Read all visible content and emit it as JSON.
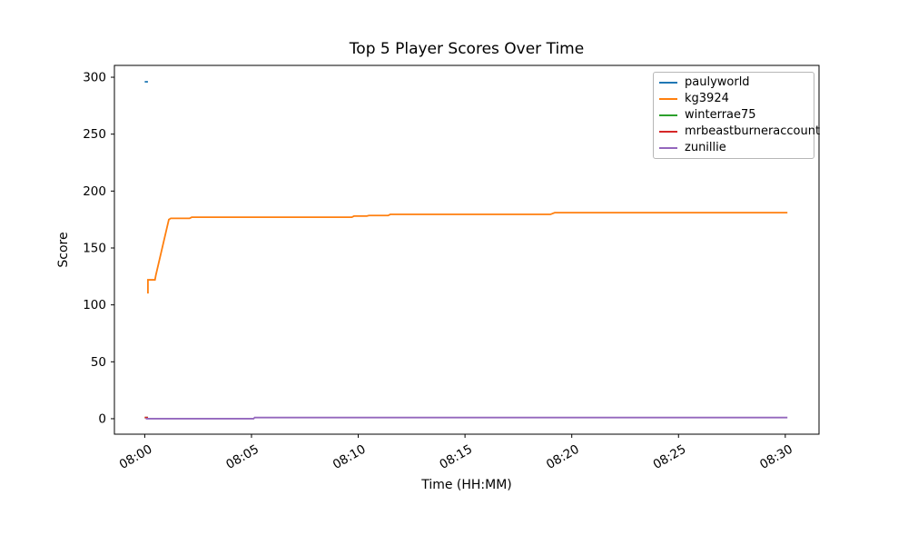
{
  "chart_data": {
    "type": "line",
    "title": "Top 5 Player Scores Over Time",
    "xlabel": "Time (HH:MM)",
    "ylabel": "Score",
    "x_unit": "minutes after 08:00",
    "xlim": [
      -1.42,
      31.58
    ],
    "ylim": [
      -13.6,
      310.4
    ],
    "grid": false,
    "legend_position": "upper right",
    "x_ticks": [
      {
        "value": 0,
        "label": "08:00"
      },
      {
        "value": 5,
        "label": "08:05"
      },
      {
        "value": 10,
        "label": "08:10"
      },
      {
        "value": 15,
        "label": "08:15"
      },
      {
        "value": 20,
        "label": "08:20"
      },
      {
        "value": 25,
        "label": "08:25"
      },
      {
        "value": 30,
        "label": "08:30"
      }
    ],
    "y_ticks": [
      {
        "value": 0,
        "label": "0"
      },
      {
        "value": 50,
        "label": "50"
      },
      {
        "value": 100,
        "label": "100"
      },
      {
        "value": 150,
        "label": "150"
      },
      {
        "value": 200,
        "label": "200"
      },
      {
        "value": 250,
        "label": "250"
      },
      {
        "value": 300,
        "label": "300"
      }
    ],
    "series": [
      {
        "name": "paulyworld",
        "color": "#1f77b4",
        "points": [
          [
            0,
            296
          ],
          [
            0.15,
            296
          ]
        ]
      },
      {
        "name": "kg3924",
        "color": "#ff7f0e",
        "points": [
          [
            0.15,
            110
          ],
          [
            0.15,
            122
          ],
          [
            0.48,
            122
          ],
          [
            0.52,
            126
          ],
          [
            1.13,
            175
          ],
          [
            1.22,
            176
          ],
          [
            2.1,
            176
          ],
          [
            2.2,
            177
          ],
          [
            9.7,
            177
          ],
          [
            9.8,
            178
          ],
          [
            10.4,
            178
          ],
          [
            10.5,
            178.5
          ],
          [
            11.4,
            178.5
          ],
          [
            11.5,
            179.5
          ],
          [
            19.0,
            179.5
          ],
          [
            19.2,
            181
          ],
          [
            30.1,
            181
          ]
        ]
      },
      {
        "name": "winterrae75",
        "color": "#2ca02c",
        "points": [
          [
            0,
            1
          ],
          [
            0.15,
            1
          ]
        ]
      },
      {
        "name": "mrbeastburneraccount",
        "color": "#d62728",
        "points": [
          [
            0,
            1
          ],
          [
            0.15,
            1
          ]
        ]
      },
      {
        "name": "zunillie",
        "color": "#9467bd",
        "points": [
          [
            0.05,
            0
          ],
          [
            5.1,
            0
          ],
          [
            5.15,
            1
          ],
          [
            30.1,
            1
          ]
        ]
      }
    ]
  }
}
